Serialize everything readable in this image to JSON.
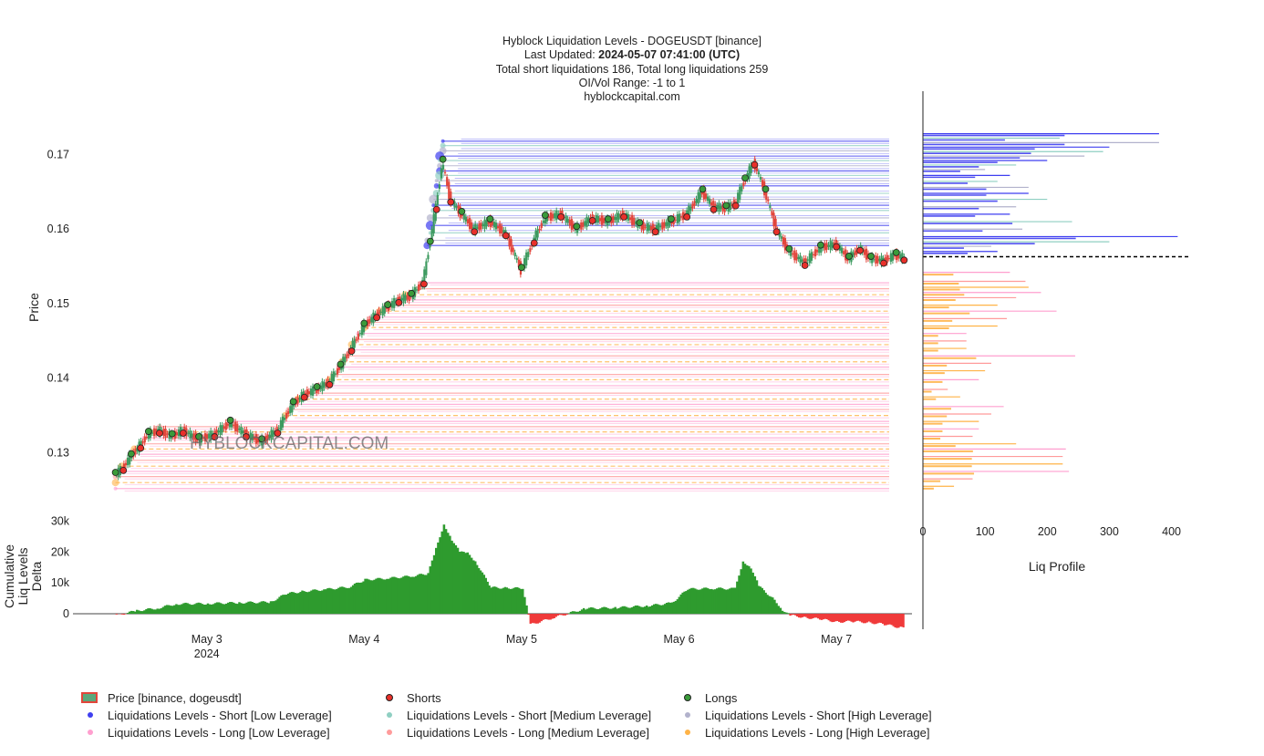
{
  "header": {
    "line1": "Hyblock Liquidation Levels - DOGEUSDT [binance]",
    "line2_prefix": "Last Updated: ",
    "line2_bold": "2024-05-07 07:41:00 (UTC)",
    "line3": "Total short liquidations 186, Total long liquidations 259",
    "line4": "OI/Vol Range: -1 to 1",
    "line5": "hyblockcapital.com"
  },
  "watermark": "HYBLOCKCAPITAL.COM",
  "colors": {
    "short_low": "#3f3ff0",
    "short_medium": "#8fcfc2",
    "short_high": "#b2b2cc",
    "long_low": "#ff9fcf",
    "long_medium": "#ff9b9b",
    "long_high": "#ffb347",
    "price_up": "#3c9a5f",
    "price_down": "#e2453b",
    "delta_pos": "#2e9b2e",
    "delta_neg": "#f03a3a",
    "shorts_marker": "#e8302a",
    "longs_marker": "#3a9b3a"
  },
  "chart_data": [
    {
      "type": "line",
      "name": "price",
      "ylabel": "Price",
      "xlabel": "",
      "ylim": [
        0.1237,
        0.1785
      ],
      "yticks": [
        0.13,
        0.14,
        0.15,
        0.16,
        0.17
      ],
      "ytick_labels": [
        "0.13",
        "0.14",
        "0.15",
        "0.16",
        "0.17"
      ],
      "xlim": [
        2.15,
        7.48
      ],
      "xticks": [
        3,
        4,
        5,
        6,
        7
      ],
      "xtick_labels": [
        "May 3",
        "May 4",
        "May 5",
        "May 6",
        "May 7"
      ],
      "xtick_sublabel": "2024",
      "price_series": {
        "x": [
          2.42,
          2.47,
          2.52,
          2.58,
          2.63,
          2.7,
          2.78,
          2.85,
          2.95,
          3.05,
          3.15,
          3.25,
          3.35,
          3.45,
          3.55,
          3.62,
          3.7,
          3.78,
          3.85,
          3.92,
          4.0,
          4.08,
          4.15,
          4.22,
          4.3,
          4.38,
          4.42,
          4.46,
          4.5,
          4.55,
          4.62,
          4.7,
          4.8,
          4.9,
          5.0,
          5.08,
          5.15,
          5.25,
          5.35,
          5.45,
          5.55,
          5.65,
          5.75,
          5.85,
          5.95,
          6.05,
          6.15,
          6.22,
          6.3,
          6.36,
          6.42,
          6.48,
          6.55,
          6.62,
          6.7,
          6.8,
          6.9,
          7.0,
          7.08,
          7.15,
          7.22,
          7.3,
          7.38,
          7.43
        ],
        "y": [
          0.127,
          0.128,
          0.1295,
          0.131,
          0.1325,
          0.133,
          0.1322,
          0.133,
          0.1318,
          0.1325,
          0.134,
          0.1325,
          0.1315,
          0.133,
          0.1365,
          0.1378,
          0.1385,
          0.1395,
          0.1415,
          0.144,
          0.147,
          0.1485,
          0.1495,
          0.1505,
          0.151,
          0.153,
          0.158,
          0.163,
          0.169,
          0.164,
          0.162,
          0.16,
          0.161,
          0.1595,
          0.1545,
          0.1585,
          0.1615,
          0.162,
          0.16,
          0.1615,
          0.161,
          0.162,
          0.1605,
          0.16,
          0.161,
          0.162,
          0.165,
          0.163,
          0.1628,
          0.1635,
          0.1665,
          0.169,
          0.165,
          0.16,
          0.157,
          0.1555,
          0.1575,
          0.158,
          0.156,
          0.1575,
          0.156,
          0.1558,
          0.1565,
          0.1562
        ]
      },
      "short_levels": [
        0.1718,
        0.1712,
        0.1705,
        0.1698,
        0.1692,
        0.1685,
        0.1678,
        0.1672,
        0.1665,
        0.1658,
        0.1648,
        0.164,
        0.1632,
        0.1625,
        0.1615,
        0.1605,
        0.1595,
        0.1585,
        0.1578
      ],
      "long_levels": [
        0.1528,
        0.152,
        0.1512,
        0.1505,
        0.1498,
        0.149,
        0.1482,
        0.1475,
        0.1468,
        0.146,
        0.1452,
        0.1445,
        0.1438,
        0.143,
        0.1422,
        0.1415,
        0.1405,
        0.1398,
        0.139,
        0.138,
        0.1372,
        0.1365,
        0.1358,
        0.135,
        0.1342,
        0.1335,
        0.1328,
        0.132,
        0.1312,
        0.1305,
        0.1298,
        0.129,
        0.1282,
        0.1275,
        0.1268,
        0.126,
        0.1252
      ],
      "current_price": 0.1563
    },
    {
      "type": "bar",
      "name": "liq-profile",
      "xlabel": "Liq Profile",
      "xlim": [
        0,
        430
      ],
      "xticks": [
        0,
        100,
        200,
        300,
        400
      ],
      "xtick_labels": [
        "0",
        "100",
        "200",
        "300",
        "400"
      ],
      "short_bars": [
        {
          "y": 0.1728,
          "value": 380
        },
        {
          "y": 0.1722,
          "value": 220
        },
        {
          "y": 0.1716,
          "value": 380
        },
        {
          "y": 0.171,
          "value": 300
        },
        {
          "y": 0.1704,
          "value": 290
        },
        {
          "y": 0.1698,
          "value": 260
        },
        {
          "y": 0.1692,
          "value": 200
        },
        {
          "y": 0.1686,
          "value": 150
        },
        {
          "y": 0.168,
          "value": 100
        },
        {
          "y": 0.1672,
          "value": 140
        },
        {
          "y": 0.1664,
          "value": 120
        },
        {
          "y": 0.1656,
          "value": 170
        },
        {
          "y": 0.1648,
          "value": 170
        },
        {
          "y": 0.164,
          "value": 200
        },
        {
          "y": 0.163,
          "value": 150
        },
        {
          "y": 0.162,
          "value": 140
        },
        {
          "y": 0.161,
          "value": 240
        },
        {
          "y": 0.16,
          "value": 160
        },
        {
          "y": 0.159,
          "value": 410
        },
        {
          "y": 0.1583,
          "value": 300
        },
        {
          "y": 0.1577,
          "value": 110
        },
        {
          "y": 0.157,
          "value": 120
        }
      ],
      "long_bars": [
        {
          "y": 0.1542,
          "value": 140
        },
        {
          "y": 0.153,
          "value": 165
        },
        {
          "y": 0.1522,
          "value": 170
        },
        {
          "y": 0.1515,
          "value": 190
        },
        {
          "y": 0.1508,
          "value": 150
        },
        {
          "y": 0.1498,
          "value": 120
        },
        {
          "y": 0.149,
          "value": 215
        },
        {
          "y": 0.148,
          "value": 135
        },
        {
          "y": 0.147,
          "value": 120
        },
        {
          "y": 0.146,
          "value": 70
        },
        {
          "y": 0.145,
          "value": 70
        },
        {
          "y": 0.144,
          "value": 70
        },
        {
          "y": 0.143,
          "value": 245
        },
        {
          "y": 0.142,
          "value": 110
        },
        {
          "y": 0.141,
          "value": 100
        },
        {
          "y": 0.1398,
          "value": 90
        },
        {
          "y": 0.1385,
          "value": 40
        },
        {
          "y": 0.1375,
          "value": 60
        },
        {
          "y": 0.1362,
          "value": 130
        },
        {
          "y": 0.1352,
          "value": 110
        },
        {
          "y": 0.1342,
          "value": 90
        },
        {
          "y": 0.1332,
          "value": 90
        },
        {
          "y": 0.1322,
          "value": 80
        },
        {
          "y": 0.1312,
          "value": 150
        },
        {
          "y": 0.1305,
          "value": 230
        },
        {
          "y": 0.1295,
          "value": 225
        },
        {
          "y": 0.1285,
          "value": 225
        },
        {
          "y": 0.1275,
          "value": 235
        },
        {
          "y": 0.1265,
          "value": 80
        },
        {
          "y": 0.1255,
          "value": 50
        }
      ]
    },
    {
      "type": "area",
      "name": "cumulative-delta",
      "ylabel": "Cumulative Liq Levels Delta",
      "ylim": [
        -5000,
        31000
      ],
      "yticks": [
        0,
        10000,
        20000,
        30000
      ],
      "ytick_labels": [
        "0",
        "10k",
        "20k",
        "30k"
      ],
      "x": [
        2.42,
        2.55,
        2.68,
        2.8,
        3.0,
        3.2,
        3.4,
        3.5,
        3.6,
        3.75,
        3.9,
        4.0,
        4.15,
        4.3,
        4.4,
        4.45,
        4.5,
        4.55,
        4.6,
        4.65,
        4.7,
        4.8,
        4.9,
        5.0,
        5.05,
        5.2,
        5.4,
        5.6,
        5.8,
        5.95,
        6.05,
        6.2,
        6.35,
        6.4,
        6.45,
        6.5,
        6.6,
        6.65,
        6.7,
        6.8,
        6.9,
        7.0,
        7.1,
        7.2,
        7.3,
        7.4,
        7.43
      ],
      "y": [
        -500,
        1000,
        1800,
        3200,
        3300,
        3600,
        3800,
        6500,
        7200,
        7900,
        8700,
        11000,
        11500,
        12200,
        13000,
        21000,
        29000,
        24000,
        20000,
        19500,
        17000,
        8500,
        8400,
        8200,
        -3500,
        -1200,
        1700,
        2000,
        2600,
        3500,
        8000,
        8200,
        8100,
        17000,
        15000,
        9000,
        4500,
        1300,
        -500,
        -1200,
        -1800,
        -2600,
        -2500,
        -2800,
        -3400,
        -4500,
        -4200
      ]
    }
  ],
  "legend": {
    "price": "Price [binance, dogeusdt]",
    "shorts": "Shorts",
    "longs": "Longs",
    "short_low": "Liquidations Levels - Short [Low Leverage]",
    "short_medium": "Liquidations Levels - Short [Medium Leverage]",
    "short_high": "Liquidations Levels - Short [High Leverage]",
    "long_low": "Liquidations Levels - Long [Low Leverage]",
    "long_medium": "Liquidations Levels - Long [Medium Leverage]",
    "long_high": "Liquidations Levels - Long [High Leverage]"
  }
}
